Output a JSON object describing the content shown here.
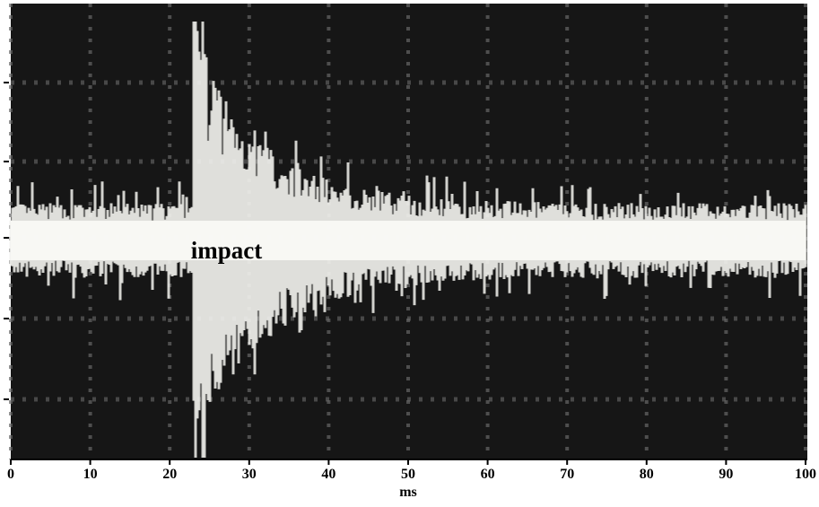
{
  "chart_data": {
    "type": "oscilloscope",
    "xlabel": "ms",
    "xlim": [
      0,
      100
    ],
    "xticks": [
      0,
      10,
      20,
      30,
      40,
      50,
      60,
      70,
      80,
      90,
      100
    ],
    "annotations": [
      {
        "text": "impact",
        "x": 23
      }
    ]
  }
}
